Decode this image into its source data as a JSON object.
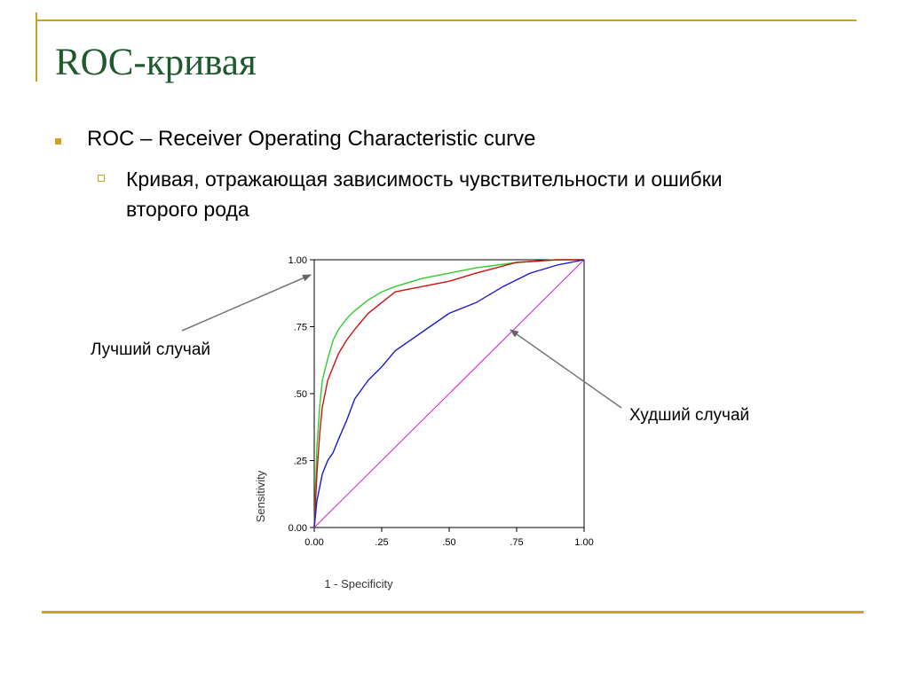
{
  "slide": {
    "title": "ROC-кривая",
    "bullet1": "ROC – Receiver Operating Characteristic curve",
    "bullet2": "Кривая, отражающая зависимость чувствительности и ошибки второго рода"
  },
  "annotations": {
    "best": "Лучший случай",
    "worst": "Худший случай"
  },
  "colors": {
    "accent": "#c9a227",
    "title": "#1e5a2e",
    "series_green": "#2ecc2e",
    "series_red": "#cc1111",
    "series_blue": "#1a1acc",
    "diagonal": "#d61ad6"
  },
  "chart_data": {
    "type": "line",
    "xlabel": "1 - Specificity",
    "ylabel": "Sensitivity",
    "xlim": [
      0,
      1
    ],
    "ylim": [
      0,
      1
    ],
    "xticks": [
      "0.00",
      ".25",
      ".50",
      ".75",
      "1.00"
    ],
    "yticks": [
      "0.00",
      ".25",
      ".50",
      ".75",
      "1.00"
    ],
    "grid": false,
    "series": [
      {
        "color": "#2ecc2e",
        "x": [
          0,
          0.01,
          0.02,
          0.03,
          0.05,
          0.07,
          0.09,
          0.12,
          0.15,
          0.2,
          0.25,
          0.3,
          0.4,
          0.5,
          0.6,
          0.75,
          0.9,
          1
        ],
        "y": [
          0,
          0.3,
          0.45,
          0.55,
          0.63,
          0.7,
          0.74,
          0.78,
          0.81,
          0.85,
          0.88,
          0.9,
          0.93,
          0.95,
          0.97,
          0.99,
          1,
          1
        ]
      },
      {
        "color": "#cc1111",
        "x": [
          0,
          0.01,
          0.02,
          0.03,
          0.05,
          0.07,
          0.09,
          0.12,
          0.15,
          0.2,
          0.25,
          0.3,
          0.4,
          0.5,
          0.6,
          0.75,
          0.9,
          1
        ],
        "y": [
          0,
          0.2,
          0.35,
          0.45,
          0.55,
          0.6,
          0.65,
          0.7,
          0.74,
          0.8,
          0.84,
          0.88,
          0.9,
          0.92,
          0.95,
          0.99,
          1,
          1
        ]
      },
      {
        "color": "#1a1acc",
        "x": [
          0,
          0.01,
          0.02,
          0.03,
          0.05,
          0.07,
          0.09,
          0.12,
          0.15,
          0.2,
          0.25,
          0.3,
          0.4,
          0.5,
          0.6,
          0.7,
          0.8,
          0.9,
          1
        ],
        "y": [
          0,
          0.1,
          0.15,
          0.2,
          0.25,
          0.28,
          0.33,
          0.4,
          0.48,
          0.55,
          0.6,
          0.66,
          0.73,
          0.8,
          0.84,
          0.9,
          0.95,
          0.98,
          1
        ]
      },
      {
        "color": "#d61ad6",
        "x": [
          0,
          1
        ],
        "y": [
          0,
          1
        ]
      }
    ]
  }
}
